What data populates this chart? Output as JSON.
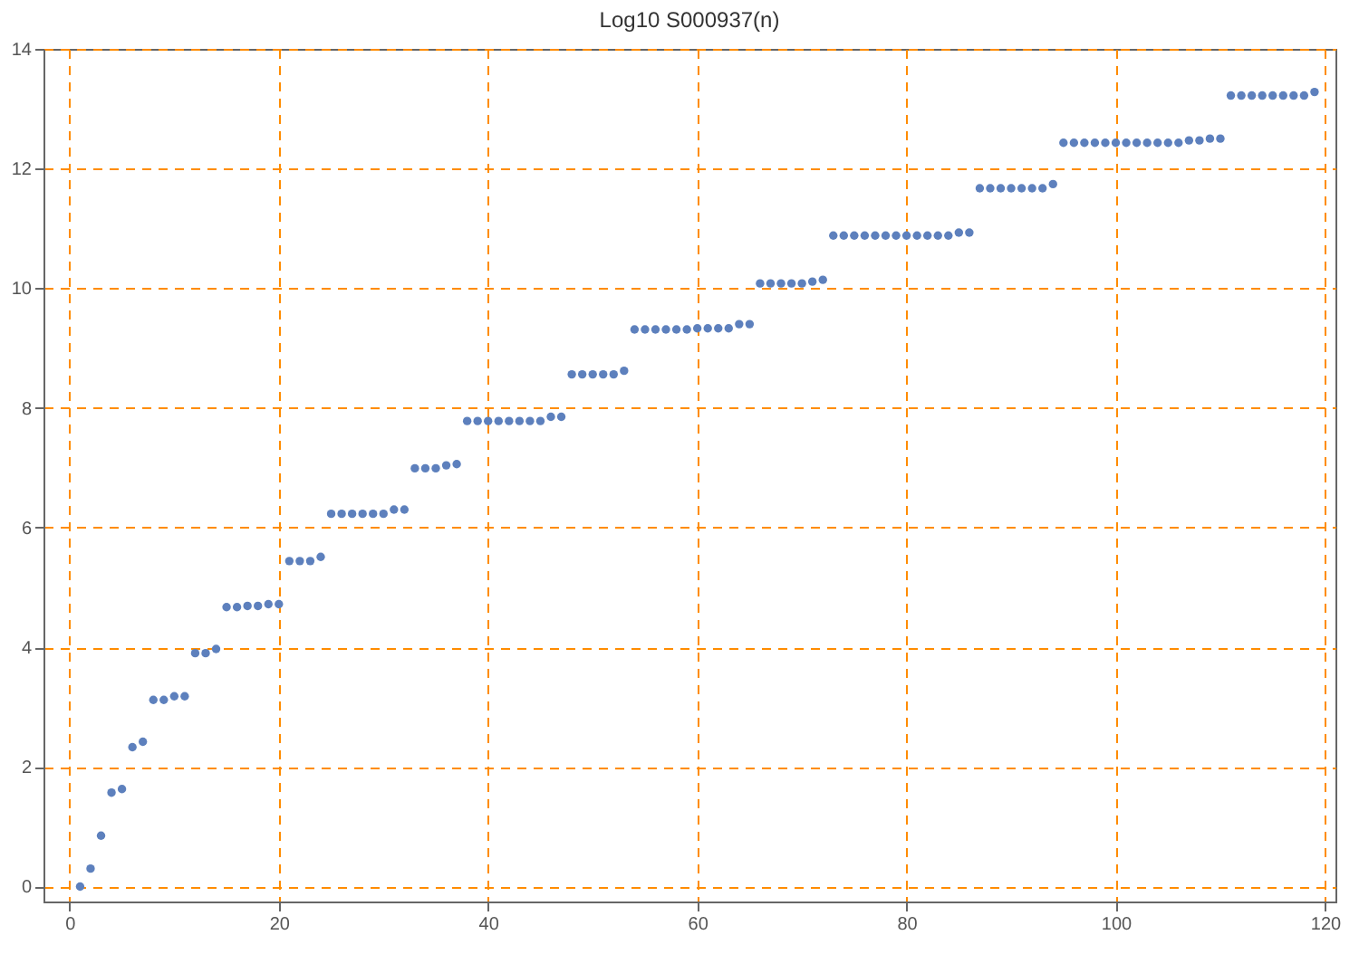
{
  "chart_data": {
    "type": "scatter",
    "title": "Log10 S000937(n)",
    "x": [
      1,
      2,
      3,
      4,
      5,
      6,
      7,
      8,
      9,
      10,
      11,
      12,
      13,
      14,
      15,
      16,
      17,
      18,
      19,
      20,
      21,
      22,
      23,
      24,
      25,
      26,
      27,
      28,
      29,
      30,
      31,
      32,
      33,
      34,
      35,
      36,
      37,
      38,
      39,
      40,
      41,
      42,
      43,
      44,
      45,
      46,
      47,
      48,
      49,
      50,
      51,
      52,
      53,
      54,
      55,
      56,
      57,
      58,
      59,
      60,
      61,
      62,
      63,
      64,
      65,
      66,
      67,
      68,
      69,
      70,
      71,
      72,
      73,
      74,
      75,
      76,
      77,
      78,
      79,
      80,
      81,
      82,
      83,
      84,
      85,
      86,
      87,
      88,
      89,
      90,
      91,
      92,
      93,
      94,
      95,
      96,
      97,
      98,
      99,
      100,
      101,
      102,
      103,
      104,
      105,
      106,
      107,
      108,
      109,
      110,
      111,
      112,
      113,
      114,
      115,
      116,
      117,
      118,
      119
    ],
    "series": [
      {
        "color": "#5d80bd",
        "values": [
          0,
          0.3,
          0.85,
          1.57,
          1.63,
          2.33,
          2.42,
          3.12,
          3.12,
          3.18,
          3.18,
          3.9,
          3.9,
          3.97,
          4.67,
          4.67,
          4.69,
          4.69,
          4.72,
          4.72,
          5.44,
          5.44,
          5.44,
          5.51,
          6.23,
          6.23,
          6.23,
          6.23,
          6.23,
          6.23,
          6.3,
          6.3,
          6.99,
          6.99,
          6.99,
          7.04,
          7.06,
          7.78,
          7.78,
          7.78,
          7.78,
          7.78,
          7.78,
          7.78,
          7.78,
          7.85,
          7.85,
          8.56,
          8.56,
          8.56,
          8.56,
          8.56,
          8.62,
          9.31,
          9.31,
          9.31,
          9.31,
          9.31,
          9.31,
          9.33,
          9.33,
          9.33,
          9.33,
          9.4,
          9.4,
          10.08,
          10.08,
          10.08,
          10.08,
          10.08,
          10.11,
          10.14,
          10.88,
          10.88,
          10.88,
          10.88,
          10.88,
          10.88,
          10.88,
          10.88,
          10.88,
          10.88,
          10.88,
          10.88,
          10.93,
          10.93,
          11.67,
          11.67,
          11.67,
          11.67,
          11.67,
          11.67,
          11.67,
          11.74,
          12.43,
          12.43,
          12.43,
          12.43,
          12.43,
          12.43,
          12.43,
          12.43,
          12.43,
          12.43,
          12.43,
          12.43,
          12.47,
          12.47,
          12.5,
          12.5,
          13.22,
          13.22,
          13.22,
          13.22,
          13.22,
          13.22,
          13.22,
          13.22,
          13.28
        ]
      }
    ],
    "xlim": [
      -2.5,
      121
    ],
    "ylim": [
      -0.25,
      14
    ],
    "xticks": [
      0,
      20,
      40,
      60,
      80,
      100,
      120
    ],
    "yticks": [
      0,
      2,
      4,
      6,
      8,
      10,
      12,
      14
    ],
    "grid": true,
    "marker": "circle"
  }
}
